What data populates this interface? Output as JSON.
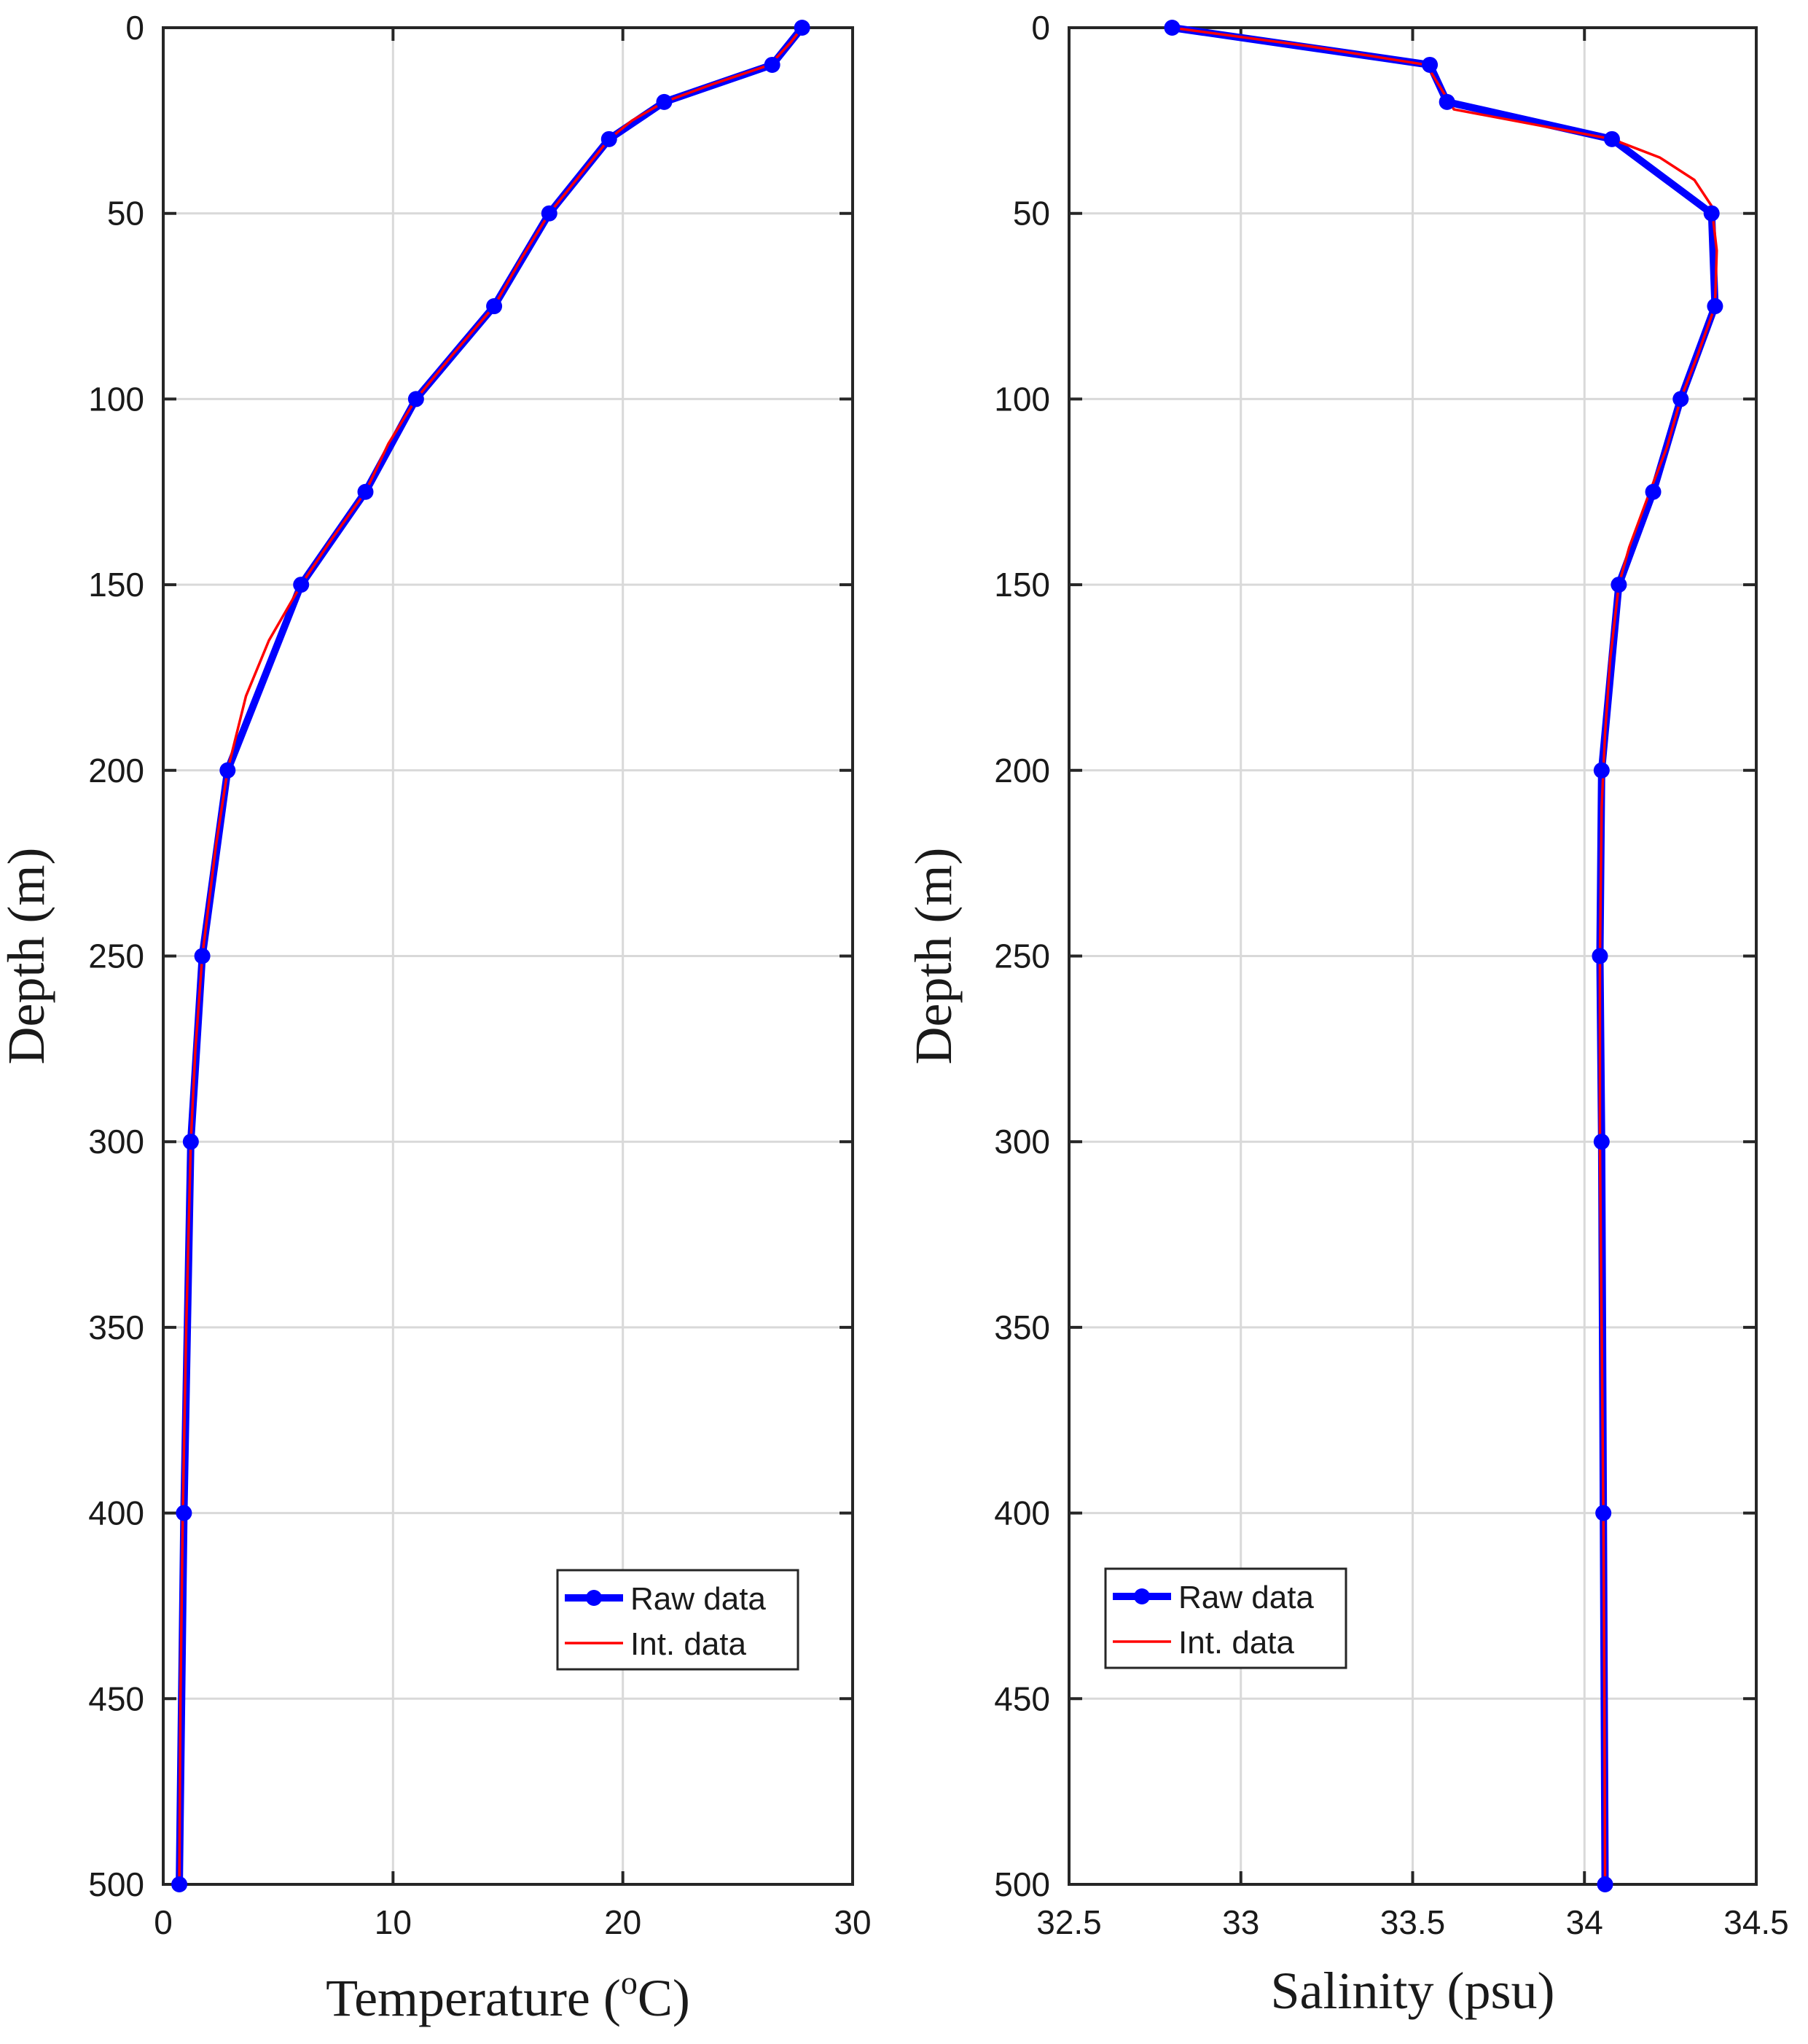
{
  "chart_data": [
    {
      "type": "line",
      "title": "",
      "xlabel": "Temperature (",
      "xlabel_sup": "o",
      "xlabel_end": "C)",
      "ylabel": "Depth (m)",
      "xlim": [
        0,
        30
      ],
      "ylim": [
        0,
        500
      ],
      "y_reversed": true,
      "xticks": [
        0,
        10,
        20,
        30
      ],
      "yticks": [
        0,
        50,
        100,
        150,
        200,
        250,
        300,
        350,
        400,
        450,
        500
      ],
      "grid": true,
      "legend_position": "bottom-right",
      "series": [
        {
          "name": "Raw data",
          "color": "#0000ff",
          "marker": "circle",
          "points": [
            [
              27.8,
              0
            ],
            [
              26.5,
              10
            ],
            [
              21.8,
              20
            ],
            [
              19.4,
              30
            ],
            [
              16.8,
              50
            ],
            [
              14.4,
              75
            ],
            [
              11.0,
              100
            ],
            [
              8.8,
              125
            ],
            [
              6.0,
              150
            ],
            [
              2.8,
              200
            ],
            [
              1.7,
              250
            ],
            [
              1.2,
              300
            ],
            [
              0.9,
              400
            ],
            [
              0.7,
              500
            ]
          ]
        },
        {
          "name": "Int. data",
          "color": "#ff0000",
          "marker": "none",
          "points": [
            [
              27.8,
              0
            ],
            [
              27.3,
              4
            ],
            [
              26.4,
              10
            ],
            [
              24.0,
              15
            ],
            [
              21.8,
              20
            ],
            [
              20.4,
              25
            ],
            [
              19.4,
              30
            ],
            [
              18.1,
              40
            ],
            [
              16.8,
              50
            ],
            [
              15.6,
              62
            ],
            [
              14.4,
              75
            ],
            [
              12.6,
              88
            ],
            [
              11.0,
              100
            ],
            [
              9.8,
              112
            ],
            [
              8.8,
              125
            ],
            [
              7.3,
              138
            ],
            [
              6.0,
              150
            ],
            [
              4.6,
              165
            ],
            [
              3.6,
              180
            ],
            [
              2.8,
              200
            ],
            [
              2.3,
              220
            ],
            [
              1.7,
              250
            ],
            [
              1.4,
              275
            ],
            [
              1.2,
              300
            ],
            [
              1.0,
              350
            ],
            [
              0.85,
              400
            ],
            [
              0.75,
              450
            ],
            [
              0.7,
              500
            ]
          ]
        }
      ]
    },
    {
      "type": "line",
      "title": "",
      "xlabel": "Salinity (psu)",
      "ylabel": "Depth (m)",
      "xlim": [
        32.5,
        34.5
      ],
      "ylim": [
        0,
        500
      ],
      "y_reversed": true,
      "xticks": [
        32.5,
        33,
        33.5,
        34,
        34.5
      ],
      "yticks": [
        0,
        50,
        100,
        150,
        200,
        250,
        300,
        350,
        400,
        450,
        500
      ],
      "grid": true,
      "legend_position": "bottom-left",
      "series": [
        {
          "name": "Raw data",
          "color": "#0000ff",
          "marker": "circle",
          "points": [
            [
              32.8,
              0
            ],
            [
              33.55,
              10
            ],
            [
              33.6,
              20
            ],
            [
              34.08,
              30
            ],
            [
              34.37,
              50
            ],
            [
              34.38,
              75
            ],
            [
              34.28,
              100
            ],
            [
              34.2,
              125
            ],
            [
              34.1,
              150
            ],
            [
              34.05,
              200
            ],
            [
              34.045,
              250
            ],
            [
              34.05,
              300
            ],
            [
              34.055,
              400
            ],
            [
              34.06,
              500
            ]
          ]
        },
        {
          "name": "Int. data",
          "color": "#ff0000",
          "marker": "none",
          "points": [
            [
              32.8,
              0
            ],
            [
              33.2,
              5
            ],
            [
              33.54,
              10
            ],
            [
              33.58,
              16
            ],
            [
              33.62,
              22
            ],
            [
              33.85,
              26
            ],
            [
              34.08,
              30
            ],
            [
              34.22,
              35
            ],
            [
              34.32,
              41
            ],
            [
              34.37,
              48
            ],
            [
              34.385,
              60
            ],
            [
              34.38,
              75
            ],
            [
              34.33,
              88
            ],
            [
              34.28,
              100
            ],
            [
              34.24,
              113
            ],
            [
              34.19,
              125
            ],
            [
              34.13,
              140
            ],
            [
              34.1,
              150
            ],
            [
              34.075,
              170
            ],
            [
              34.06,
              190
            ],
            [
              34.05,
              210
            ],
            [
              34.045,
              250
            ],
            [
              34.045,
              300
            ],
            [
              34.05,
              350
            ],
            [
              34.055,
              400
            ],
            [
              34.058,
              450
            ],
            [
              34.06,
              500
            ]
          ]
        }
      ]
    }
  ]
}
